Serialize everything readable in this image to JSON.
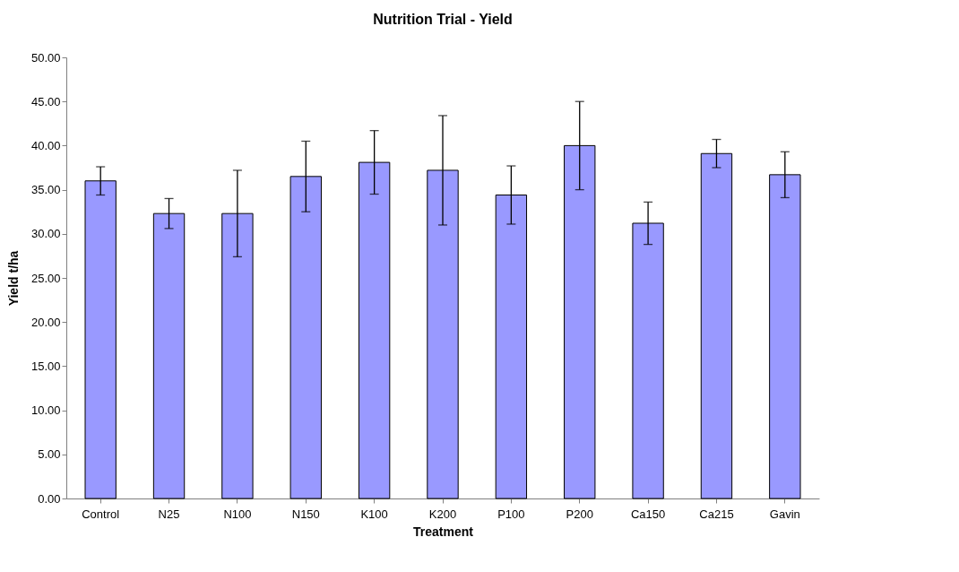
{
  "chart_data": {
    "type": "bar",
    "title": "Nutrition Trial - Yield",
    "xlabel": "Treatment",
    "ylabel": "Yield t/ha",
    "categories": [
      "Control",
      "N25",
      "N100",
      "N150",
      "K100",
      "K200",
      "P100",
      "P200",
      "Ca150",
      "Ca215",
      "Gavin"
    ],
    "values": [
      36.0,
      32.3,
      32.3,
      36.5,
      38.1,
      37.2,
      34.4,
      40.0,
      31.2,
      39.1,
      36.7
    ],
    "errors": [
      1.6,
      1.7,
      4.9,
      4.0,
      3.6,
      6.2,
      3.3,
      5.0,
      2.4,
      1.6,
      2.6
    ],
    "color": "#9999ff",
    "ylim": [
      0,
      50
    ],
    "yticks": [
      {
        "value": 0,
        "label": "0.00"
      },
      {
        "value": 5,
        "label": "5.00"
      },
      {
        "value": 10,
        "label": "10.00"
      },
      {
        "value": 15,
        "label": "15.00"
      },
      {
        "value": 20,
        "label": "20.00"
      },
      {
        "value": 25,
        "label": "25.00"
      },
      {
        "value": 30,
        "label": "30.00"
      },
      {
        "value": 35,
        "label": "35.00"
      },
      {
        "value": 40,
        "label": "40.00"
      },
      {
        "value": 45,
        "label": "45.00"
      },
      {
        "value": 50,
        "label": "50.00"
      }
    ],
    "grid": false
  }
}
